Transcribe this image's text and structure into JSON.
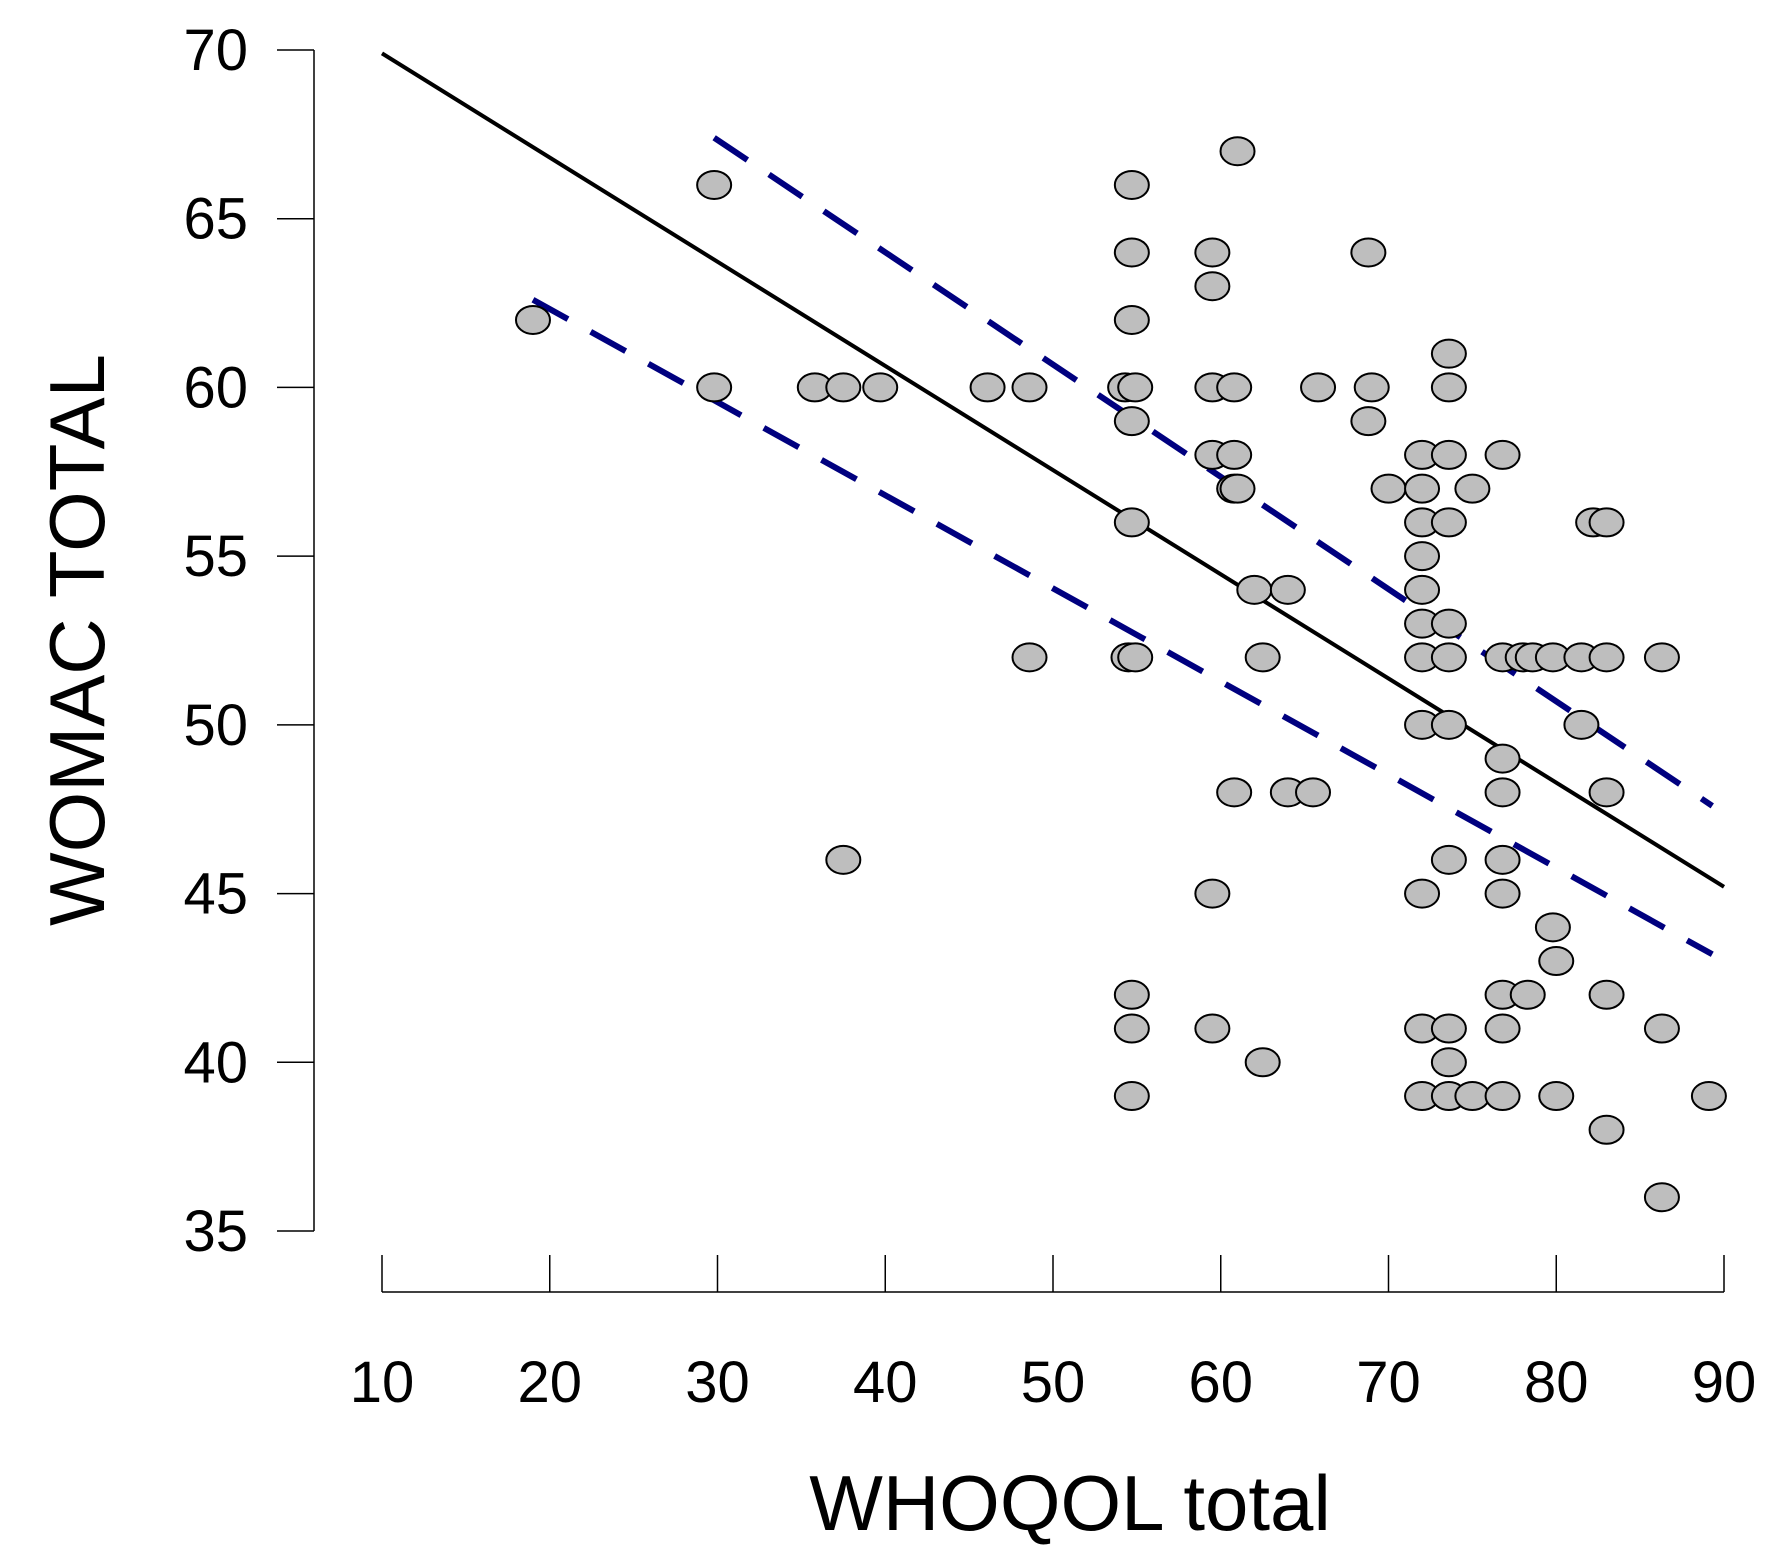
{
  "chart_data": {
    "type": "scatter",
    "title": "",
    "xlabel": "WHOQOL total",
    "ylabel": "WOMAC TOTAL",
    "xlim": [
      10,
      90
    ],
    "ylim": [
      35,
      70
    ],
    "xticks": [
      10,
      20,
      30,
      40,
      50,
      60,
      70,
      80,
      90
    ],
    "yticks": [
      35,
      40,
      45,
      50,
      55,
      60,
      65,
      70
    ],
    "grid": false,
    "points": [
      [
        19,
        62
      ],
      [
        29.8,
        66
      ],
      [
        29.8,
        60
      ],
      [
        35.8,
        60
      ],
      [
        37.5,
        60
      ],
      [
        39.7,
        60
      ],
      [
        37.5,
        46
      ],
      [
        46.1,
        60
      ],
      [
        48.6,
        60
      ],
      [
        48.6,
        52
      ],
      [
        54.7,
        66
      ],
      [
        54.7,
        64
      ],
      [
        54.7,
        62
      ],
      [
        54.3,
        60
      ],
      [
        54.9,
        60
      ],
      [
        54.7,
        59
      ],
      [
        54.7,
        56
      ],
      [
        54.5,
        52
      ],
      [
        54.9,
        52
      ],
      [
        54.7,
        42
      ],
      [
        54.7,
        41
      ],
      [
        54.7,
        39
      ],
      [
        61,
        67
      ],
      [
        59.5,
        64
      ],
      [
        59.5,
        63
      ],
      [
        59.5,
        60
      ],
      [
        60.8,
        60
      ],
      [
        59.5,
        58
      ],
      [
        60.8,
        58
      ],
      [
        60.8,
        57
      ],
      [
        61,
        57
      ],
      [
        62,
        54
      ],
      [
        62.5,
        52
      ],
      [
        60.8,
        48
      ],
      [
        59.5,
        45
      ],
      [
        59.5,
        41
      ],
      [
        62.5,
        40
      ],
      [
        64,
        54
      ],
      [
        64,
        48
      ],
      [
        65.5,
        48
      ],
      [
        65.8,
        60
      ],
      [
        68.8,
        64
      ],
      [
        69,
        60
      ],
      [
        68.8,
        59
      ],
      [
        70,
        57
      ],
      [
        72,
        58
      ],
      [
        72,
        57
      ],
      [
        72,
        56
      ],
      [
        72,
        55
      ],
      [
        72,
        54
      ],
      [
        72,
        53
      ],
      [
        72,
        52
      ],
      [
        72,
        50
      ],
      [
        72,
        45
      ],
      [
        72,
        41
      ],
      [
        72,
        39
      ],
      [
        73.6,
        61
      ],
      [
        73.6,
        60
      ],
      [
        73.6,
        58
      ],
      [
        73.6,
        56
      ],
      [
        73.6,
        53
      ],
      [
        73.6,
        52
      ],
      [
        73.6,
        50
      ],
      [
        73.6,
        46
      ],
      [
        73.6,
        41
      ],
      [
        73.6,
        40
      ],
      [
        73.6,
        39
      ],
      [
        75,
        57
      ],
      [
        75,
        39
      ],
      [
        76.8,
        58
      ],
      [
        76.8,
        52
      ],
      [
        76.8,
        49
      ],
      [
        76.8,
        48
      ],
      [
        76.8,
        46
      ],
      [
        76.8,
        45
      ],
      [
        76.8,
        42
      ],
      [
        76.8,
        41
      ],
      [
        76.8,
        39
      ],
      [
        78.3,
        42
      ],
      [
        78,
        52
      ],
      [
        78.6,
        52
      ],
      [
        79.8,
        52
      ],
      [
        79.8,
        44
      ],
      [
        80,
        43
      ],
      [
        80,
        39
      ],
      [
        81.5,
        52
      ],
      [
        81.5,
        50
      ],
      [
        82.2,
        56
      ],
      [
        83,
        56
      ],
      [
        83,
        52
      ],
      [
        83,
        48
      ],
      [
        83,
        42
      ],
      [
        83,
        38
      ],
      [
        86.3,
        52
      ],
      [
        86.3,
        41
      ],
      [
        86.3,
        36
      ],
      [
        89.1,
        39
      ]
    ],
    "fit_line": {
      "x": [
        10,
        90
      ],
      "y": [
        69.9,
        45.2
      ]
    },
    "ci_upper": {
      "x": [
        29.8,
        89.3
      ],
      "y": [
        67.4,
        47.6
      ]
    },
    "ci_lower": {
      "x": [
        19,
        89.3
      ],
      "y": [
        62.6,
        43.2
      ]
    },
    "colors": {
      "point_fill": "#bebebe",
      "point_stroke": "#000000",
      "fit_line": "#000000",
      "ci_lines": "#00007f"
    }
  }
}
